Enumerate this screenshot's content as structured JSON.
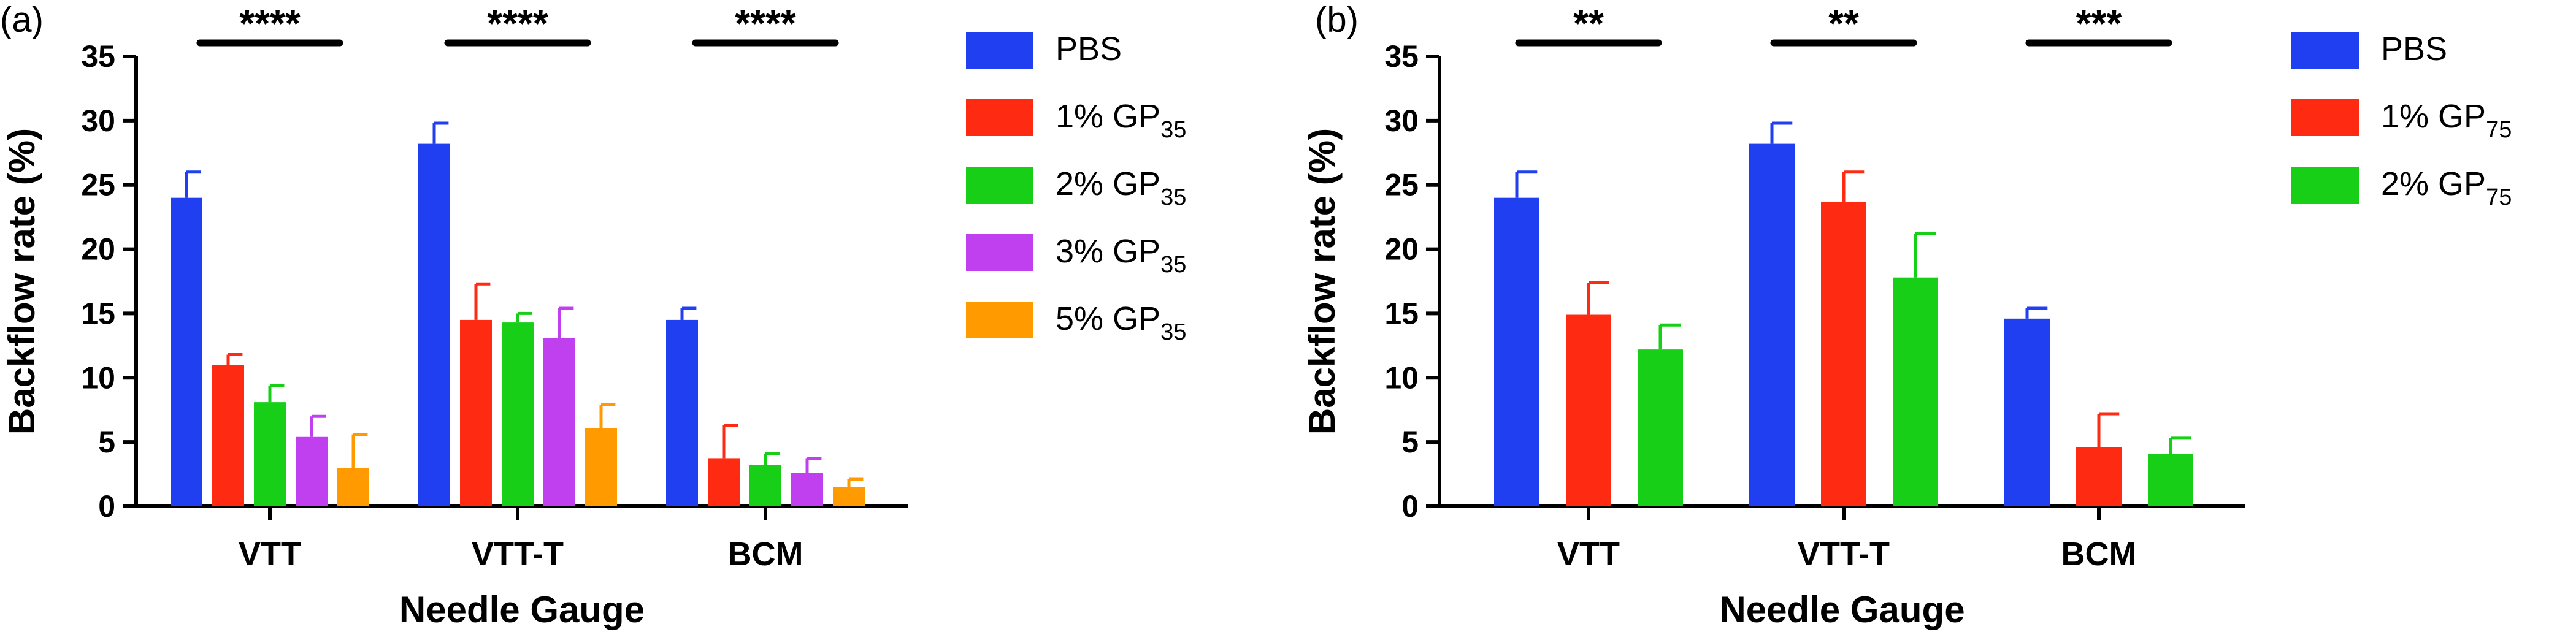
{
  "figure": {
    "colors": {
      "pbs": "#1f3ff0",
      "red": "#ff2a12",
      "green": "#16cf16",
      "purple": "#c040f0",
      "orange": "#ff9a00"
    }
  },
  "chart_data": [
    {
      "panel_label": "(a)",
      "type": "bar",
      "categories": [
        "VTT",
        "VTT-T",
        "BCM"
      ],
      "xlabel": "Needle Gauge",
      "ylabel": "Backflow rate (%)",
      "ylim": [
        0,
        35
      ],
      "yticks": [
        "0",
        "5",
        "10",
        "15",
        "20",
        "25",
        "30",
        "35"
      ],
      "legend_position": "right",
      "series": [
        {
          "name": "PBS",
          "base": "PBS",
          "sub": "",
          "color": "#1f3ff0",
          "values": [
            24.0,
            28.2,
            14.5
          ],
          "errors": [
            2.0,
            1.6,
            0.9
          ]
        },
        {
          "name": "1% GP35",
          "base": "1% GP",
          "sub": "35",
          "color": "#ff2a12",
          "values": [
            11.0,
            14.5,
            3.7
          ],
          "errors": [
            0.8,
            2.8,
            2.6
          ]
        },
        {
          "name": "2% GP35",
          "base": "2% GP",
          "sub": "35",
          "color": "#16cf16",
          "values": [
            8.1,
            14.3,
            3.2
          ],
          "errors": [
            1.3,
            0.7,
            0.9
          ]
        },
        {
          "name": "3% GP35",
          "base": "3% GP",
          "sub": "35",
          "color": "#c040f0",
          "values": [
            5.4,
            13.1,
            2.6
          ],
          "errors": [
            1.6,
            2.3,
            1.1
          ]
        },
        {
          "name": "5% GP35",
          "base": "5% GP",
          "sub": "35",
          "color": "#ff9a00",
          "values": [
            3.0,
            6.1,
            1.5
          ],
          "errors": [
            2.6,
            1.8,
            0.6
          ]
        }
      ],
      "significance": [
        "****",
        "****",
        "****"
      ]
    },
    {
      "panel_label": "(b)",
      "type": "bar",
      "categories": [
        "VTT",
        "VTT-T",
        "BCM"
      ],
      "xlabel": "Needle Gauge",
      "ylabel": "Backflow rate (%)",
      "ylim": [
        0,
        35
      ],
      "yticks": [
        "0",
        "5",
        "10",
        "15",
        "20",
        "25",
        "30",
        "35"
      ],
      "legend_position": "right",
      "series": [
        {
          "name": "PBS",
          "base": "PBS",
          "sub": "",
          "color": "#1f3ff0",
          "values": [
            24.0,
            28.2,
            14.6
          ],
          "errors": [
            2.0,
            1.6,
            0.8
          ]
        },
        {
          "name": "1% GP75",
          "base": "1% GP",
          "sub": "75",
          "color": "#ff2a12",
          "values": [
            14.9,
            23.7,
            4.6
          ],
          "errors": [
            2.5,
            2.3,
            2.6
          ]
        },
        {
          "name": "2% GP75",
          "base": "2% GP",
          "sub": "75",
          "color": "#16cf16",
          "values": [
            12.2,
            17.8,
            4.1
          ],
          "errors": [
            1.9,
            3.4,
            1.2
          ]
        }
      ],
      "significance": [
        "**",
        "**",
        "***"
      ]
    }
  ]
}
